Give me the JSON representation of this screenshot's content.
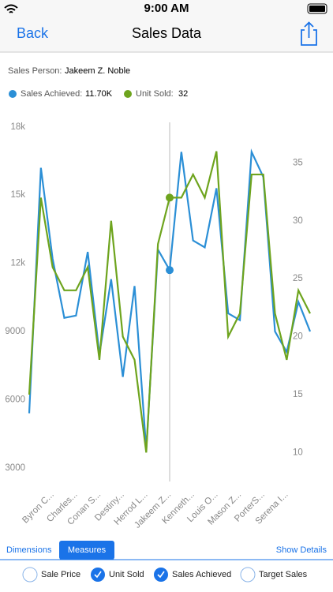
{
  "status_bar": {
    "time": "9:00 AM"
  },
  "nav": {
    "back": "Back",
    "title": "Sales Data"
  },
  "info": {
    "person_label": "Sales Person:",
    "person": "Jakeem Z. Noble",
    "readouts": [
      {
        "name": "Sales Achieved:",
        "value": "11.70K"
      },
      {
        "name": "Unit Sold:",
        "value": "32"
      }
    ]
  },
  "chart_data": {
    "type": "line",
    "categories": [
      null,
      null,
      "Byron C...",
      null,
      "Charles...",
      null,
      "Conan S...",
      null,
      "Destiny...",
      null,
      "Herrod L...",
      null,
      "Jakeem Z...",
      null,
      "Kenneth...",
      null,
      "Louis O...",
      null,
      "Mason Z...",
      null,
      "PorterS...",
      null,
      "Serena I...",
      null,
      null
    ],
    "series": [
      {
        "name": "Sales Achieved",
        "color": "#2b8fd6",
        "values": [
          5400,
          16200,
          12200,
          9600,
          9700,
          12500,
          8000,
          11300,
          7000,
          11000,
          3800,
          12600,
          11700,
          16900,
          13000,
          12700,
          15300,
          9800,
          9500,
          16900,
          15800,
          9000,
          8100,
          10300,
          9000
        ]
      },
      {
        "name": "Unit Sold",
        "color": "#6ea41e",
        "axis": "y2",
        "values": [
          15,
          32,
          26,
          24,
          24,
          26,
          18,
          30,
          20,
          18,
          10,
          28,
          32,
          32,
          34,
          32,
          36,
          20,
          22,
          34,
          34,
          22,
          18,
          24,
          22
        ]
      }
    ],
    "ylim": [
      2400,
      18200
    ],
    "yticks": [
      3000,
      6000,
      9000,
      {
        "value": 12000,
        "label": "12k"
      },
      {
        "value": 15000,
        "label": "15k"
      },
      {
        "value": 18000,
        "label": "18k"
      }
    ],
    "y2lim": [
      7.5,
      38.5
    ],
    "y2ticks": [
      10,
      15,
      20,
      25,
      30,
      35
    ],
    "selected_index": 12
  },
  "tabs": [
    {
      "label": "Dimensions",
      "selected": false
    },
    {
      "label": "Measures",
      "selected": true
    }
  ],
  "show_details": "Show Details",
  "measures": [
    {
      "label": "Sale Price",
      "checked": false
    },
    {
      "label": "Unit Sold",
      "checked": true
    },
    {
      "label": "Sales Achieved",
      "checked": true
    },
    {
      "label": "Target Sales",
      "checked": false
    }
  ]
}
